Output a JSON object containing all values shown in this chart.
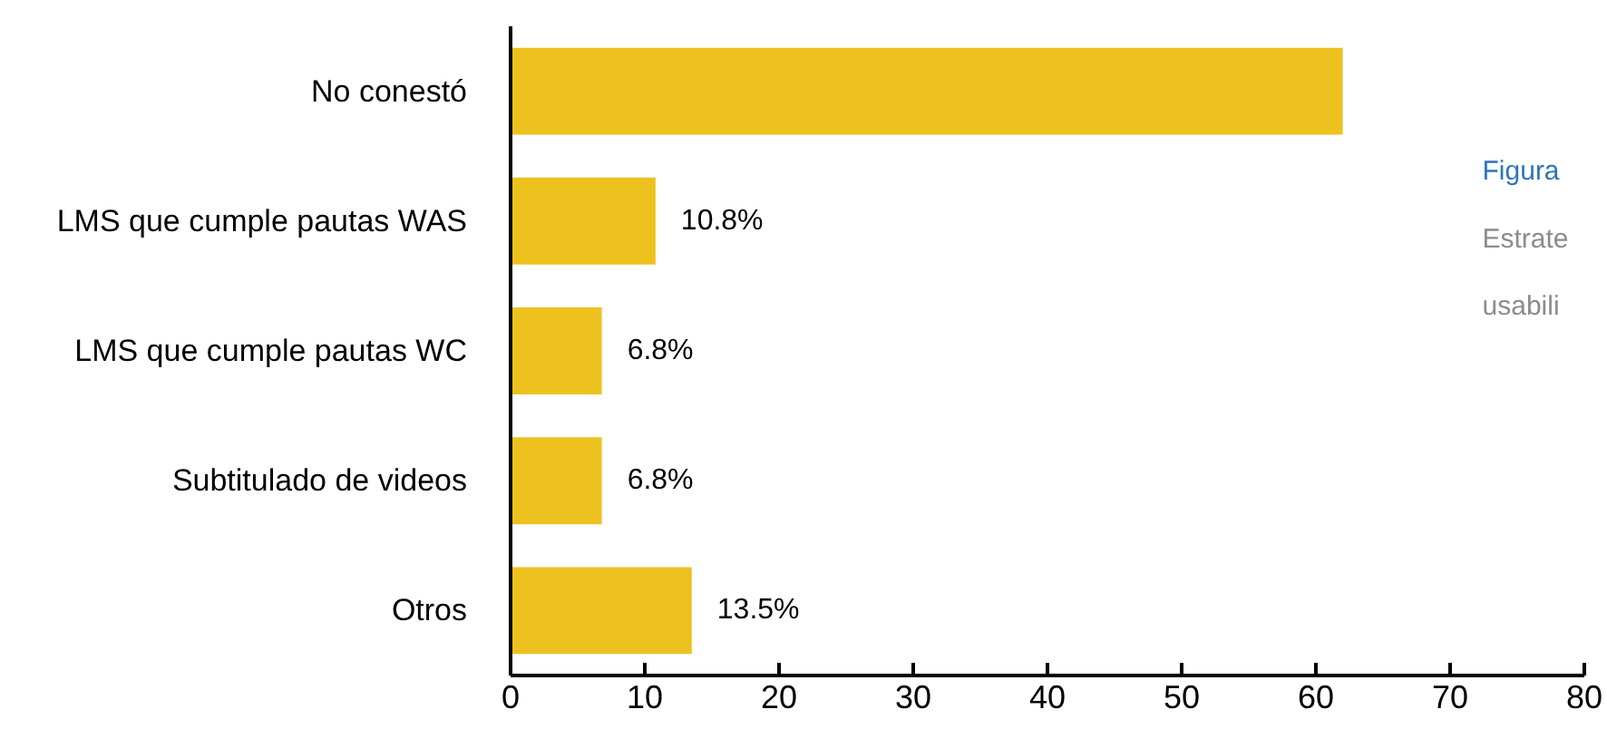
{
  "chart_data": {
    "type": "bar",
    "orientation": "horizontal",
    "categories": [
      "No conestó",
      "LMS que cumple pautas WAS",
      "LMS que cumple pautas WC",
      "Subtitulado de videos",
      "Otros"
    ],
    "values": [
      62,
      10.8,
      6.8,
      6.8,
      13.5
    ],
    "value_labels": [
      null,
      "10.8%",
      "6.8%",
      "6.8%",
      "13.5%"
    ],
    "color": "#edc21f",
    "xlim": [
      0,
      80
    ],
    "xticks": [
      0,
      10,
      20,
      30,
      40,
      50,
      60,
      70,
      80
    ],
    "grid": false,
    "annotations": [
      "Figura",
      "Estrate",
      "usabili"
    ]
  }
}
